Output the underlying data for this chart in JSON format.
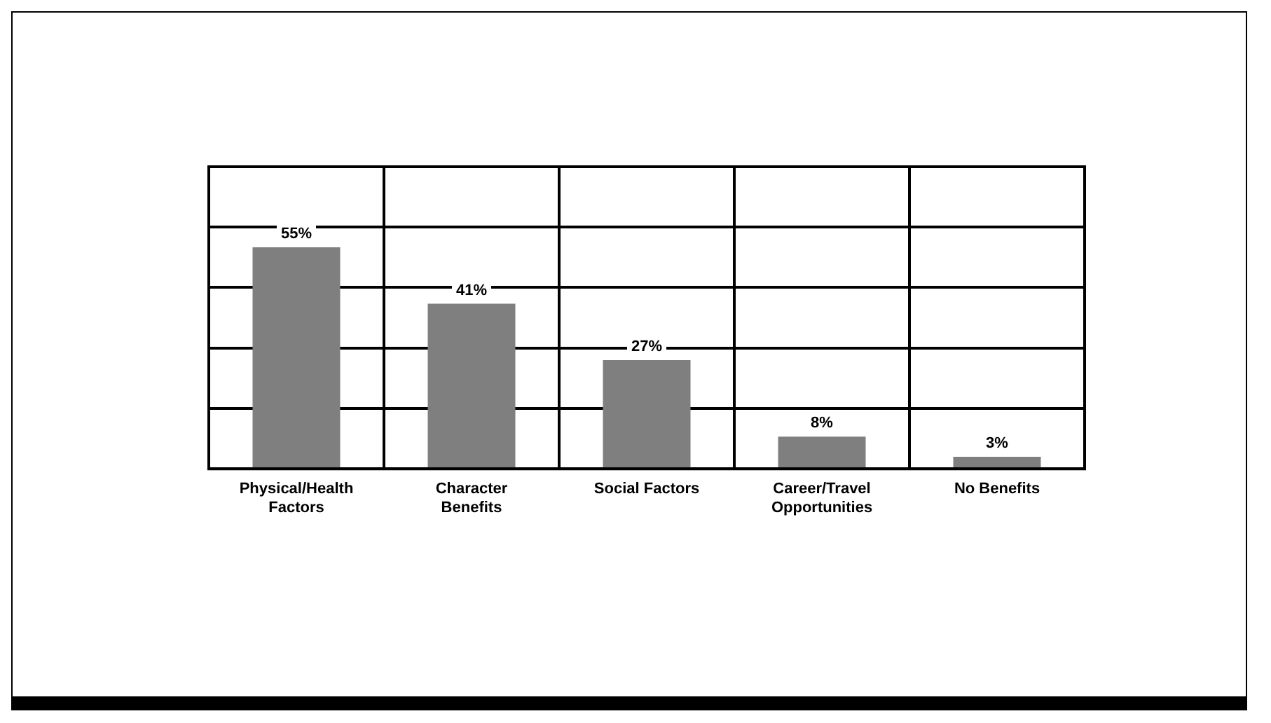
{
  "chart_data": {
    "type": "bar",
    "categories": [
      "Physical/Health Factors",
      "Character Benefits",
      "Social Factors",
      "Career/Travel Opportunities",
      "No Benefits"
    ],
    "values": [
      55,
      41,
      27,
      8,
      3
    ],
    "value_labels": [
      "55%",
      "41%",
      "27%",
      "8%",
      "3%"
    ],
    "color": "#7f7f7f",
    "ylim": [
      0,
      75
    ],
    "yticks": [
      {
        "value": 0,
        "label": null
      },
      {
        "value": 15,
        "label": null
      },
      {
        "value": 30,
        "label": null
      },
      {
        "value": 45,
        "label": null
      },
      {
        "value": 60,
        "label": null
      }
    ],
    "tick_labels": "x",
    "grid": true
  }
}
